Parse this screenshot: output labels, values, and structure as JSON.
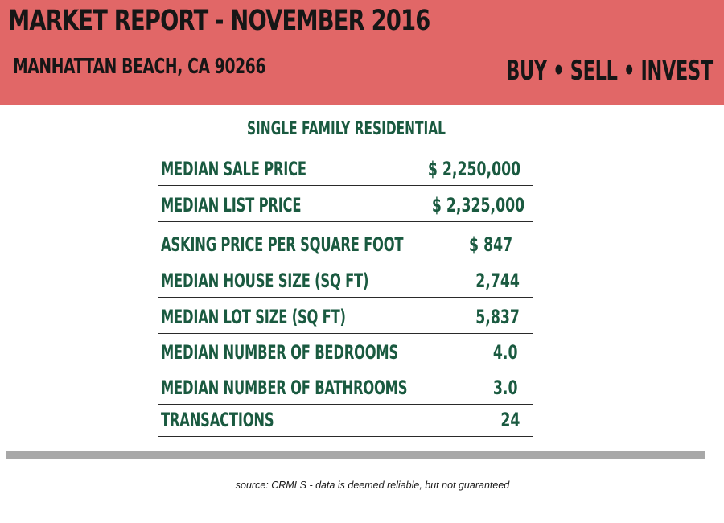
{
  "header": {
    "title": "MARKET REPORT - NOVEMBER 2016",
    "location": "MANHATTAN BEACH, CA 90266",
    "tagline": "BUY • SELL • INVEST"
  },
  "report": {
    "subtitle": "SINGLE FAMILY RESIDENTIAL",
    "stats": [
      {
        "label": "MEDIAN SALE PRICE",
        "value": "$ 2,250,000"
      },
      {
        "label": "MEDIAN LIST PRICE",
        "value": "$ 2,325,000"
      },
      {
        "label": "ASKING PRICE PER SQUARE FOOT",
        "value": "$  847"
      },
      {
        "label": "MEDIAN HOUSE SIZE (SQ FT)",
        "value": "2,744"
      },
      {
        "label": "MEDIAN LOT SIZE (SQ FT)",
        "value": "5,837"
      },
      {
        "label": "MEDIAN NUMBER OF BEDROOMS",
        "value": "4.0"
      },
      {
        "label": "MEDIAN NUMBER OF BATHROOMS",
        "value": "3.0"
      },
      {
        "label": "TRANSACTIONS",
        "value": "24"
      }
    ]
  },
  "footer": {
    "source": "source:  CRMLS - data is deemed reliable, but not guaranteed"
  },
  "colors": {
    "header_bg": "#e16767",
    "header_text": "#161616",
    "stat_text": "#1a5a40",
    "divider": "#a8a8a8"
  }
}
